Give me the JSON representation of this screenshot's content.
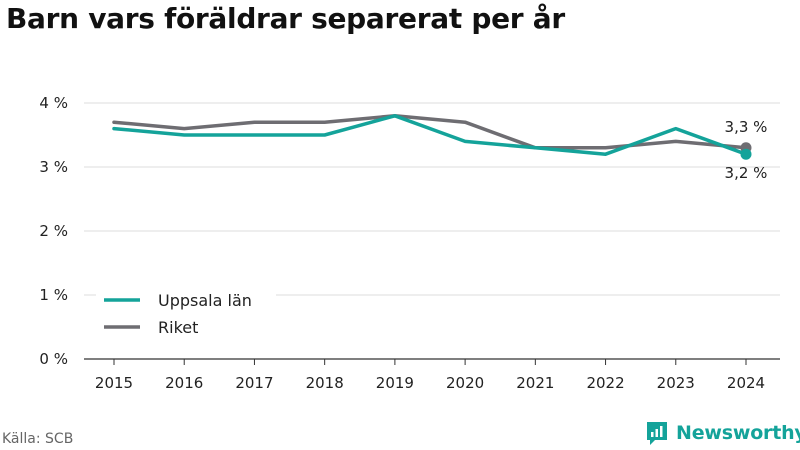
{
  "title": "Barn vars föräldrar separerat per år",
  "source": "Källa: SCB",
  "brand": "Newsworthy",
  "colors": {
    "uppsala": "#14a39a",
    "riket": "#6e6d72",
    "grid": "#dddddd",
    "axis": "#333333",
    "brand": "#14a39a"
  },
  "chart_data": {
    "type": "line",
    "x": [
      "2015",
      "2016",
      "2017",
      "2018",
      "2019",
      "2020",
      "2021",
      "2022",
      "2023",
      "2024"
    ],
    "series": [
      {
        "name": "Uppsala län",
        "values": [
          3.6,
          3.5,
          3.5,
          3.5,
          3.8,
          3.4,
          3.3,
          3.2,
          3.6,
          3.2
        ]
      },
      {
        "name": "Riket",
        "values": [
          3.7,
          3.6,
          3.7,
          3.7,
          3.8,
          3.7,
          3.3,
          3.3,
          3.4,
          3.3
        ]
      }
    ],
    "ylim": [
      0,
      4
    ],
    "yticks": [
      0,
      1,
      2,
      3,
      4
    ],
    "ytick_labels": [
      "0 %",
      "1 %",
      "2 %",
      "3 %",
      "4 %"
    ],
    "end_labels": [
      "3,2 %",
      "3,3 %"
    ],
    "legend_position": "lower-left",
    "grid": true
  }
}
